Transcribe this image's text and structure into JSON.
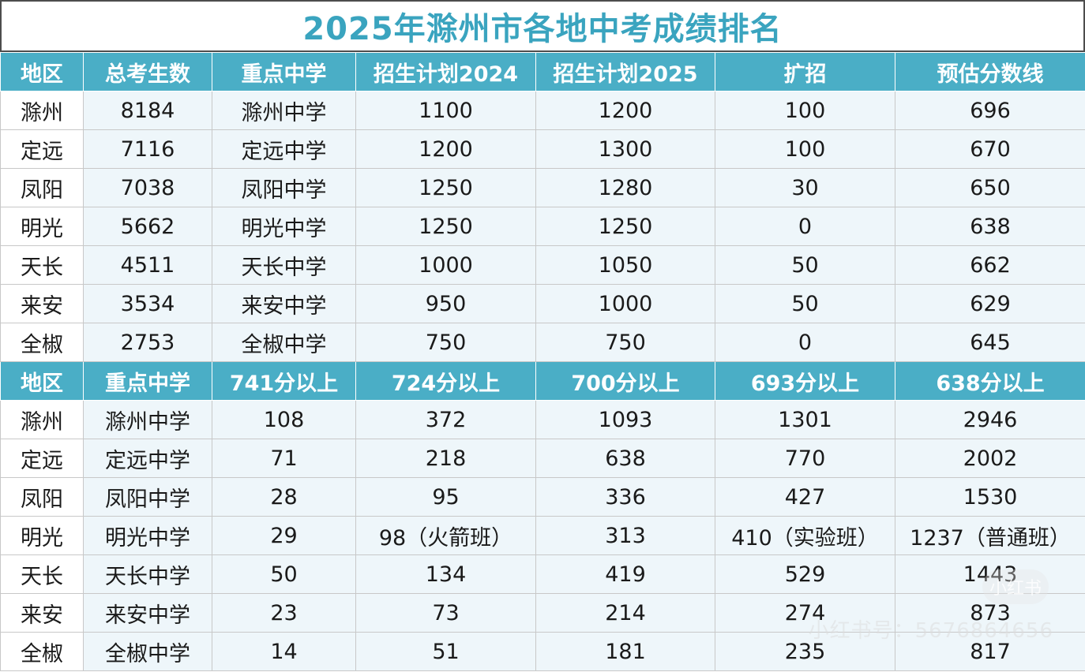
{
  "title": "2025年滁州市各地中考成绩排名",
  "table1": {
    "headers": [
      "地区",
      "总考生数",
      "重点中学",
      "招生计划2024",
      "招生计划2025",
      "扩招",
      "预估分数线"
    ],
    "rows": [
      [
        "滁州",
        "8184",
        "滁州中学",
        "1100",
        "1200",
        "100",
        "696"
      ],
      [
        "定远",
        "7116",
        "定远中学",
        "1200",
        "1300",
        "100",
        "670"
      ],
      [
        "凤阳",
        "7038",
        "凤阳中学",
        "1250",
        "1280",
        "30",
        "650"
      ],
      [
        "明光",
        "5662",
        "明光中学",
        "1250",
        "1250",
        "0",
        "638"
      ],
      [
        "天长",
        "4511",
        "天长中学",
        "1000",
        "1050",
        "50",
        "662"
      ],
      [
        "来安",
        "3534",
        "来安中学",
        "950",
        "1000",
        "50",
        "629"
      ],
      [
        "全椒",
        "2753",
        "全椒中学",
        "750",
        "750",
        "0",
        "645"
      ]
    ]
  },
  "table2": {
    "headers": [
      "地区",
      "重点中学",
      "741分以上",
      "724分以上",
      "700分以上",
      "693分以上",
      "638分以上"
    ],
    "rows": [
      [
        "滁州",
        "滁州中学",
        "108",
        "372",
        "1093",
        "1301",
        "2946"
      ],
      [
        "定远",
        "定远中学",
        "71",
        "218",
        "638",
        "770",
        "2002"
      ],
      [
        "凤阳",
        "凤阳中学",
        "28",
        "95",
        "336",
        "427",
        "1530"
      ],
      [
        "明光",
        "明光中学",
        "29",
        "98（火箭班）",
        "313",
        "410（实验班）",
        "1237（普通班）"
      ],
      [
        "天长",
        "天长中学",
        "50",
        "134",
        "419",
        "529",
        "1443"
      ],
      [
        "来安",
        "来安中学",
        "23",
        "73",
        "214",
        "274",
        "873"
      ],
      [
        "全椒",
        "全椒中学",
        "14",
        "51",
        "181",
        "235",
        "817"
      ]
    ]
  },
  "watermark": {
    "logo": "小红书",
    "text": "小红书号：5676864656"
  }
}
